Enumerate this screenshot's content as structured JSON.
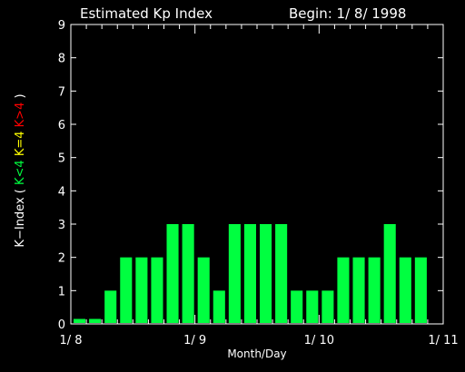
{
  "header": {
    "title": "Estimated Kp Index",
    "begin": "Begin: 1/ 8/ 1998"
  },
  "colors": {
    "background": "#000000",
    "axis": "#ffffff",
    "text": "#ffffff",
    "bar_low": "#00ff40",
    "bar_mid": "#ffff00",
    "bar_high": "#ff0000"
  },
  "chart_data": {
    "type": "bar",
    "title": "Estimated Kp Index",
    "subtitle": "Begin: 1/ 8/ 1998",
    "xlabel": "Month/Day",
    "ylabel_parts": [
      {
        "text": "K−Index",
        "color": "#ffffff"
      },
      {
        "text": "(",
        "color": "#ffffff"
      },
      {
        "text": "K<4",
        "color": "#00ff40"
      },
      {
        "text": "K=4",
        "color": "#ffff00"
      },
      {
        "text": "K>4",
        "color": "#ff0000"
      },
      {
        "text": ")",
        "color": "#ffffff"
      }
    ],
    "ylim": [
      0,
      9
    ],
    "yticks": [
      "0",
      "1",
      "2",
      "3",
      "4",
      "5",
      "6",
      "7",
      "8",
      "9"
    ],
    "xlim": [
      0,
      24
    ],
    "xticks": [
      {
        "pos": 0,
        "label": "1/ 8"
      },
      {
        "pos": 8,
        "label": "1/ 9"
      },
      {
        "pos": 16,
        "label": "1/ 10"
      },
      {
        "pos": 24,
        "label": "1/ 11"
      }
    ],
    "minor_xticks_per_day": 8,
    "grid": false,
    "values": [
      0.15,
      0.15,
      1,
      2,
      2,
      2,
      3,
      3,
      2,
      1,
      3,
      3,
      3,
      3,
      1,
      1,
      1,
      2,
      2,
      2,
      3,
      2,
      2
    ]
  }
}
